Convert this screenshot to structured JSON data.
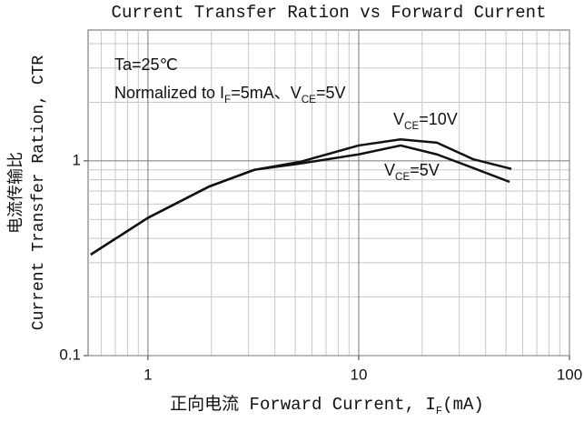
{
  "chart_data": {
    "type": "line",
    "title": "Current Transfer Ration vs Forward Current",
    "x_label_parts": [
      "正向电流 Forward Current, I",
      "F",
      "(mA)"
    ],
    "y_label_lines": [
      "电流传输比",
      "Current Transfer Ration, CTR"
    ],
    "annotations": [
      [
        "Ta=25℃"
      ],
      [
        "Normalized to I",
        "F",
        "=5mA、V",
        "CE",
        "=5V"
      ]
    ],
    "log_x": true,
    "log_y": true,
    "grid": true,
    "xlim": [
      0.52,
      100
    ],
    "ylim": [
      0.1,
      4.7
    ],
    "xticks": [
      1,
      10,
      100
    ],
    "yticks": [
      0.1,
      1
    ],
    "xminor_ticks": [
      0.6,
      0.7,
      0.8,
      0.9,
      2,
      3,
      4,
      5,
      6,
      7,
      8,
      9,
      20,
      30,
      40,
      50,
      60,
      70,
      80,
      90
    ],
    "yminor_ticks": [
      0.2,
      0.3,
      0.4,
      0.5,
      0.6,
      0.7,
      0.8,
      0.9,
      2,
      3,
      4
    ],
    "series": [
      {
        "name": "VCE=10V",
        "color": "#111111",
        "x": [
          0.535,
          1,
          1.96,
          3.2,
          5.3,
          10,
          15.8,
          23.5,
          34.9,
          53
        ],
        "values": [
          0.33,
          0.51,
          0.74,
          0.9,
          0.99,
          1.2,
          1.29,
          1.24,
          1.02,
          0.91
        ]
      },
      {
        "name": "VCE=5V",
        "color": "#111111",
        "x": [
          0.535,
          1,
          1.96,
          3.2,
          5.3,
          10,
          15.8,
          23.5,
          34.9,
          52
        ],
        "values": [
          0.33,
          0.51,
          0.74,
          0.9,
          0.97,
          1.08,
          1.2,
          1.08,
          0.92,
          0.78
        ]
      }
    ]
  }
}
